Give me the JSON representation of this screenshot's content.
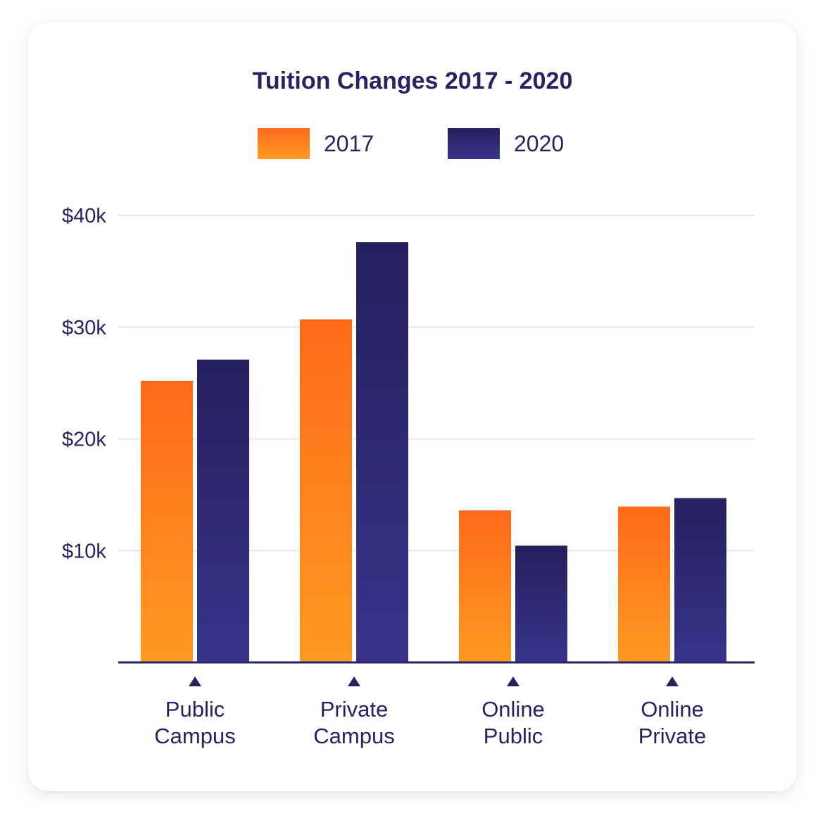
{
  "chart_data": {
    "type": "bar",
    "title": "Tuition Changes 2017 - 2020",
    "xlabel": "",
    "ylabel": "",
    "categories": [
      [
        "Public",
        "Campus"
      ],
      [
        "Private",
        "Campus"
      ],
      [
        "Online",
        "Public"
      ],
      [
        "Online",
        "Private"
      ]
    ],
    "series": [
      {
        "name": "2017",
        "values": [
          25200,
          30700,
          13600,
          13950
        ]
      },
      {
        "name": "2020",
        "values": [
          27100,
          37600,
          10450,
          14700
        ]
      }
    ],
    "ylim": [
      0,
      40000
    ],
    "yticks": [
      {
        "value": 10000,
        "label": "$10k"
      },
      {
        "value": 20000,
        "label": "$20k"
      },
      {
        "value": 30000,
        "label": "$30k"
      },
      {
        "value": 40000,
        "label": "$40k"
      }
    ],
    "grid": true,
    "legend_position": "top",
    "colors": {
      "series_2017_top": "#FF6A1A",
      "series_2017_bottom": "#FF9A22",
      "series_2020_top": "#25205E",
      "series_2020_bottom": "#39338C",
      "text": "#272362",
      "grid": "#E2E4EE",
      "axis": "#272362"
    }
  }
}
